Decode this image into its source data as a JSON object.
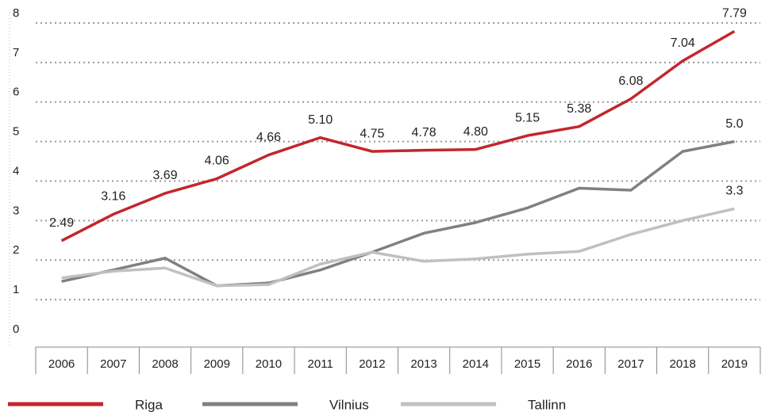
{
  "chart_data": {
    "type": "line",
    "categories": [
      "2006",
      "2007",
      "2008",
      "2009",
      "2010",
      "2011",
      "2012",
      "2013",
      "2014",
      "2015",
      "2016",
      "2017",
      "2018",
      "2019"
    ],
    "series": [
      {
        "name": "Riga",
        "color": "#c1272d",
        "values": [
          2.49,
          3.16,
          3.69,
          4.06,
          4.66,
          5.1,
          4.75,
          4.78,
          4.8,
          5.15,
          5.38,
          6.08,
          7.04,
          7.79
        ],
        "value_labels": [
          "2.49",
          "3.16",
          "3.69",
          "4.06",
          "4.66",
          "5.10",
          "4.75",
          "4.78",
          "4.80",
          "5.15",
          "5.38",
          "6.08",
          "7.04",
          "7.79"
        ]
      },
      {
        "name": "Vilnius",
        "color": "#808080",
        "values": [
          1.46,
          1.75,
          2.05,
          1.35,
          1.42,
          1.75,
          2.2,
          2.68,
          2.95,
          3.32,
          3.82,
          3.77,
          4.75,
          5
        ],
        "value_labels": [
          null,
          null,
          null,
          null,
          null,
          null,
          null,
          null,
          null,
          null,
          null,
          null,
          null,
          "5.0"
        ]
      },
      {
        "name": "Tallinn",
        "color": "#c0c0c0",
        "values": [
          1.55,
          1.72,
          1.8,
          1.35,
          1.38,
          1.9,
          2.2,
          1.97,
          2.03,
          2.15,
          2.22,
          2.65,
          3.0,
          3.3
        ],
        "value_labels": [
          null,
          null,
          null,
          null,
          null,
          null,
          null,
          null,
          null,
          null,
          null,
          null,
          null,
          "3.3"
        ]
      }
    ],
    "ylim": [
      0,
      8
    ],
    "yticks": [
      0,
      1,
      2,
      3,
      4,
      5,
      6,
      7,
      8
    ],
    "grid": true,
    "legend": "bottom"
  }
}
